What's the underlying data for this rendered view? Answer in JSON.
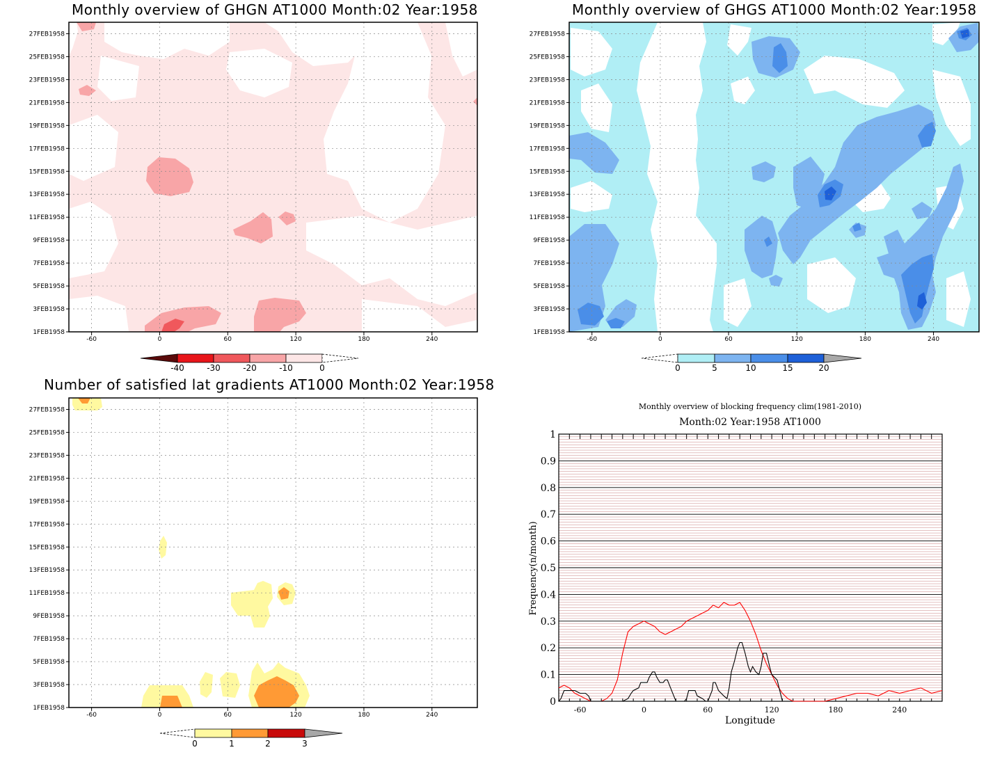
{
  "chart_data": [
    {
      "type": "heatmap",
      "title": "Monthly overview of GHGN AT1000 Month:02 Year:1958",
      "y_ticks": [
        "1FEB1958",
        "3FEB1958",
        "5FEB1958",
        "7FEB1958",
        "9FEB1958",
        "11FEB1958",
        "13FEB1958",
        "15FEB1958",
        "17FEB1958",
        "19FEB1958",
        "21FEB1958",
        "23FEB1958",
        "25FEB1958",
        "27FEB1958"
      ],
      "x_ticks": [
        "-60",
        "0",
        "60",
        "120",
        "180",
        "240"
      ],
      "xlim": [
        -80,
        280
      ],
      "colorbar": {
        "labels": [
          "-40",
          "-30",
          "-20",
          "-10",
          "0"
        ],
        "colors": [
          "#5a0a0a",
          "#e8151a",
          "#f0585c",
          "#f8a5a7",
          "#fde6e6"
        ]
      },
      "grid": true
    },
    {
      "type": "heatmap",
      "title": "Monthly overview of GHGS AT1000 Month:02 Year:1958",
      "y_ticks": [
        "1FEB1958",
        "3FEB1958",
        "5FEB1958",
        "7FEB1958",
        "9FEB1958",
        "11FEB1958",
        "13FEB1958",
        "15FEB1958",
        "17FEB1958",
        "19FEB1958",
        "21FEB1958",
        "23FEB1958",
        "25FEB1958",
        "27FEB1958"
      ],
      "x_ticks": [
        "-60",
        "0",
        "60",
        "120",
        "180",
        "240"
      ],
      "xlim": [
        -80,
        280
      ],
      "colorbar": {
        "labels": [
          "0",
          "5",
          "10",
          "15",
          "20"
        ],
        "colors": [
          "#b0eef5",
          "#7db4f0",
          "#4a8ee8",
          "#1e60d8",
          "#a8a8a8"
        ]
      },
      "grid": true
    },
    {
      "type": "heatmap",
      "title": "Number of satisfied lat gradients AT1000 Month:02 Year:1958",
      "y_ticks": [
        "1FEB1958",
        "3FEB1958",
        "5FEB1958",
        "7FEB1958",
        "9FEB1958",
        "11FEB1958",
        "13FEB1958",
        "15FEB1958",
        "17FEB1958",
        "19FEB1958",
        "21FEB1958",
        "23FEB1958",
        "25FEB1958",
        "27FEB1958"
      ],
      "x_ticks": [
        "-60",
        "0",
        "60",
        "120",
        "180",
        "240"
      ],
      "xlim": [
        -80,
        280
      ],
      "colorbar": {
        "labels": [
          "0",
          "1",
          "2",
          "3"
        ],
        "colors": [
          "#fff9a0",
          "#ff9a35",
          "#c80a0a",
          "#a8a8a8"
        ]
      },
      "grid": true
    },
    {
      "type": "line",
      "title": "Monthly overview of blocking frequency clim(1981-2010)",
      "subtitle": "Month:02 Year:1958  AT1000",
      "xlabel": "Longitude",
      "ylabel": "Frequency(n/month)",
      "xlim": [
        -80,
        280
      ],
      "ylim": [
        0,
        1
      ],
      "x_ticks": [
        "-60",
        "0",
        "60",
        "120",
        "180",
        "240"
      ],
      "y_ticks": [
        "0",
        "0.1",
        "0.2",
        "0.3",
        "0.4",
        "0.5",
        "0.6",
        "0.7",
        "0.8",
        "0.9",
        "1"
      ],
      "series": [
        {
          "color": "#ff0000",
          "x": [
            -80,
            -75,
            -70,
            -65,
            -60,
            -55,
            -50,
            -45,
            -40,
            -35,
            -30,
            -25,
            -20,
            -15,
            -10,
            -5,
            0,
            5,
            10,
            15,
            20,
            25,
            30,
            35,
            40,
            45,
            50,
            55,
            60,
            65,
            70,
            75,
            80,
            85,
            90,
            95,
            100,
            105,
            110,
            115,
            120,
            125,
            130,
            135,
            140,
            150,
            160,
            170,
            180,
            190,
            200,
            210,
            220,
            230,
            240,
            250,
            260,
            270,
            280
          ],
          "y": [
            0.05,
            0.06,
            0.05,
            0.03,
            0.02,
            0.01,
            0.0,
            0.0,
            0.0,
            0.01,
            0.03,
            0.08,
            0.18,
            0.26,
            0.28,
            0.29,
            0.3,
            0.29,
            0.28,
            0.26,
            0.25,
            0.26,
            0.27,
            0.28,
            0.3,
            0.31,
            0.32,
            0.33,
            0.34,
            0.36,
            0.35,
            0.37,
            0.36,
            0.36,
            0.37,
            0.34,
            0.3,
            0.25,
            0.19,
            0.14,
            0.1,
            0.06,
            0.03,
            0.01,
            0.0,
            0.0,
            0.0,
            0.0,
            0.01,
            0.02,
            0.03,
            0.03,
            0.02,
            0.04,
            0.03,
            0.04,
            0.05,
            0.03,
            0.04
          ]
        },
        {
          "color": "#000000",
          "x": [
            -80,
            -78,
            -75,
            -70,
            -65,
            -60,
            -55,
            -52,
            -50,
            -48,
            -20,
            -15,
            -12,
            -10,
            -5,
            -3,
            0,
            3,
            5,
            8,
            10,
            12,
            15,
            18,
            20,
            22,
            25,
            28,
            30,
            35,
            38,
            40,
            42,
            45,
            48,
            50,
            55,
            58,
            60,
            62,
            64,
            65,
            67,
            70,
            75,
            78,
            80,
            82,
            85,
            88,
            90,
            92,
            95,
            98,
            100,
            102,
            105,
            108,
            110,
            112,
            115,
            118,
            120,
            125,
            130
          ],
          "y": [
            0.0,
            0.01,
            0.04,
            0.04,
            0.04,
            0.03,
            0.03,
            0.02,
            0.0,
            0.0,
            0.0,
            0.01,
            0.03,
            0.04,
            0.05,
            0.07,
            0.07,
            0.07,
            0.09,
            0.11,
            0.11,
            0.09,
            0.07,
            0.07,
            0.08,
            0.08,
            0.05,
            0.02,
            0.0,
            0.0,
            0.0,
            0.01,
            0.04,
            0.04,
            0.04,
            0.02,
            0.01,
            0.0,
            0.0,
            0.02,
            0.04,
            0.07,
            0.07,
            0.04,
            0.02,
            0.01,
            0.05,
            0.11,
            0.15,
            0.2,
            0.22,
            0.22,
            0.18,
            0.13,
            0.11,
            0.13,
            0.11,
            0.1,
            0.13,
            0.18,
            0.18,
            0.13,
            0.1,
            0.08,
            0.0
          ]
        }
      ],
      "grid": true
    }
  ]
}
